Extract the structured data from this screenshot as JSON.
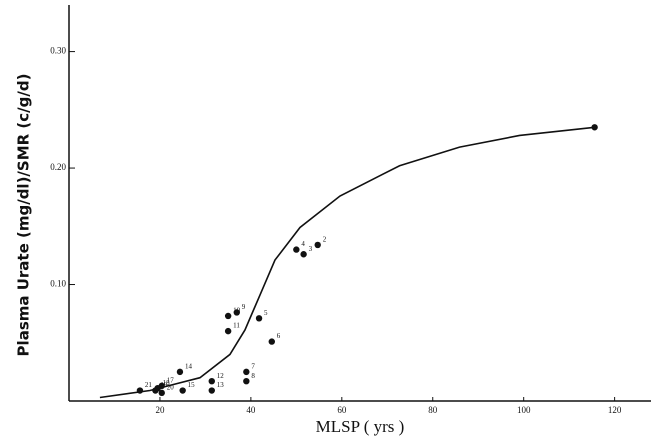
{
  "chart_data": {
    "type": "scatter",
    "x_label": "MLSP ( yrs )",
    "y_label": "Plasma Urate (mg/dl)/SMR (c/g/d)",
    "xlim": [
      0,
      128
    ],
    "ylim": [
      0,
      0.34
    ],
    "xticks": [
      20,
      40,
      60,
      80,
      100,
      120
    ],
    "yticks": [
      {
        "value": 0.1,
        "label": "0.10"
      },
      {
        "value": 0.2,
        "label": "0.20"
      },
      {
        "value": 0.3,
        "label": "0.30"
      }
    ],
    "color": "#111111",
    "points": {
      "x": [
        115.6,
        54.7,
        50,
        51.6,
        41.8,
        36.9,
        35,
        35,
        44.6,
        39,
        39,
        31.4,
        31.4,
        24.4,
        25,
        20.4,
        19.5,
        19,
        20.4,
        15.6
      ],
      "y": [
        0.235,
        0.134,
        0.13,
        0.126,
        0.071,
        0.076,
        0.073,
        0.06,
        0.051,
        0.025,
        0.017,
        0.017,
        0.009,
        0.025,
        0.009,
        0.013,
        0.011,
        0.009,
        0.007,
        0.009
      ],
      "labels": [
        null,
        "2",
        "4",
        "3",
        "5",
        "9",
        "10",
        "11",
        "6",
        "7",
        "8",
        "12",
        "13",
        "14",
        "15",
        "17",
        "18",
        "19",
        "20",
        "21"
      ]
    },
    "curve": {
      "x": [
        6.8,
        17.8,
        28.8,
        35.4,
        38.7,
        42,
        45.3,
        50.8,
        59.6,
        72.7,
        85.9,
        99.1,
        115.6
      ],
      "y": [
        0.003,
        0.009,
        0.02,
        0.04,
        0.061,
        0.091,
        0.121,
        0.149,
        0.176,
        0.202,
        0.218,
        0.228,
        0.235
      ]
    }
  }
}
